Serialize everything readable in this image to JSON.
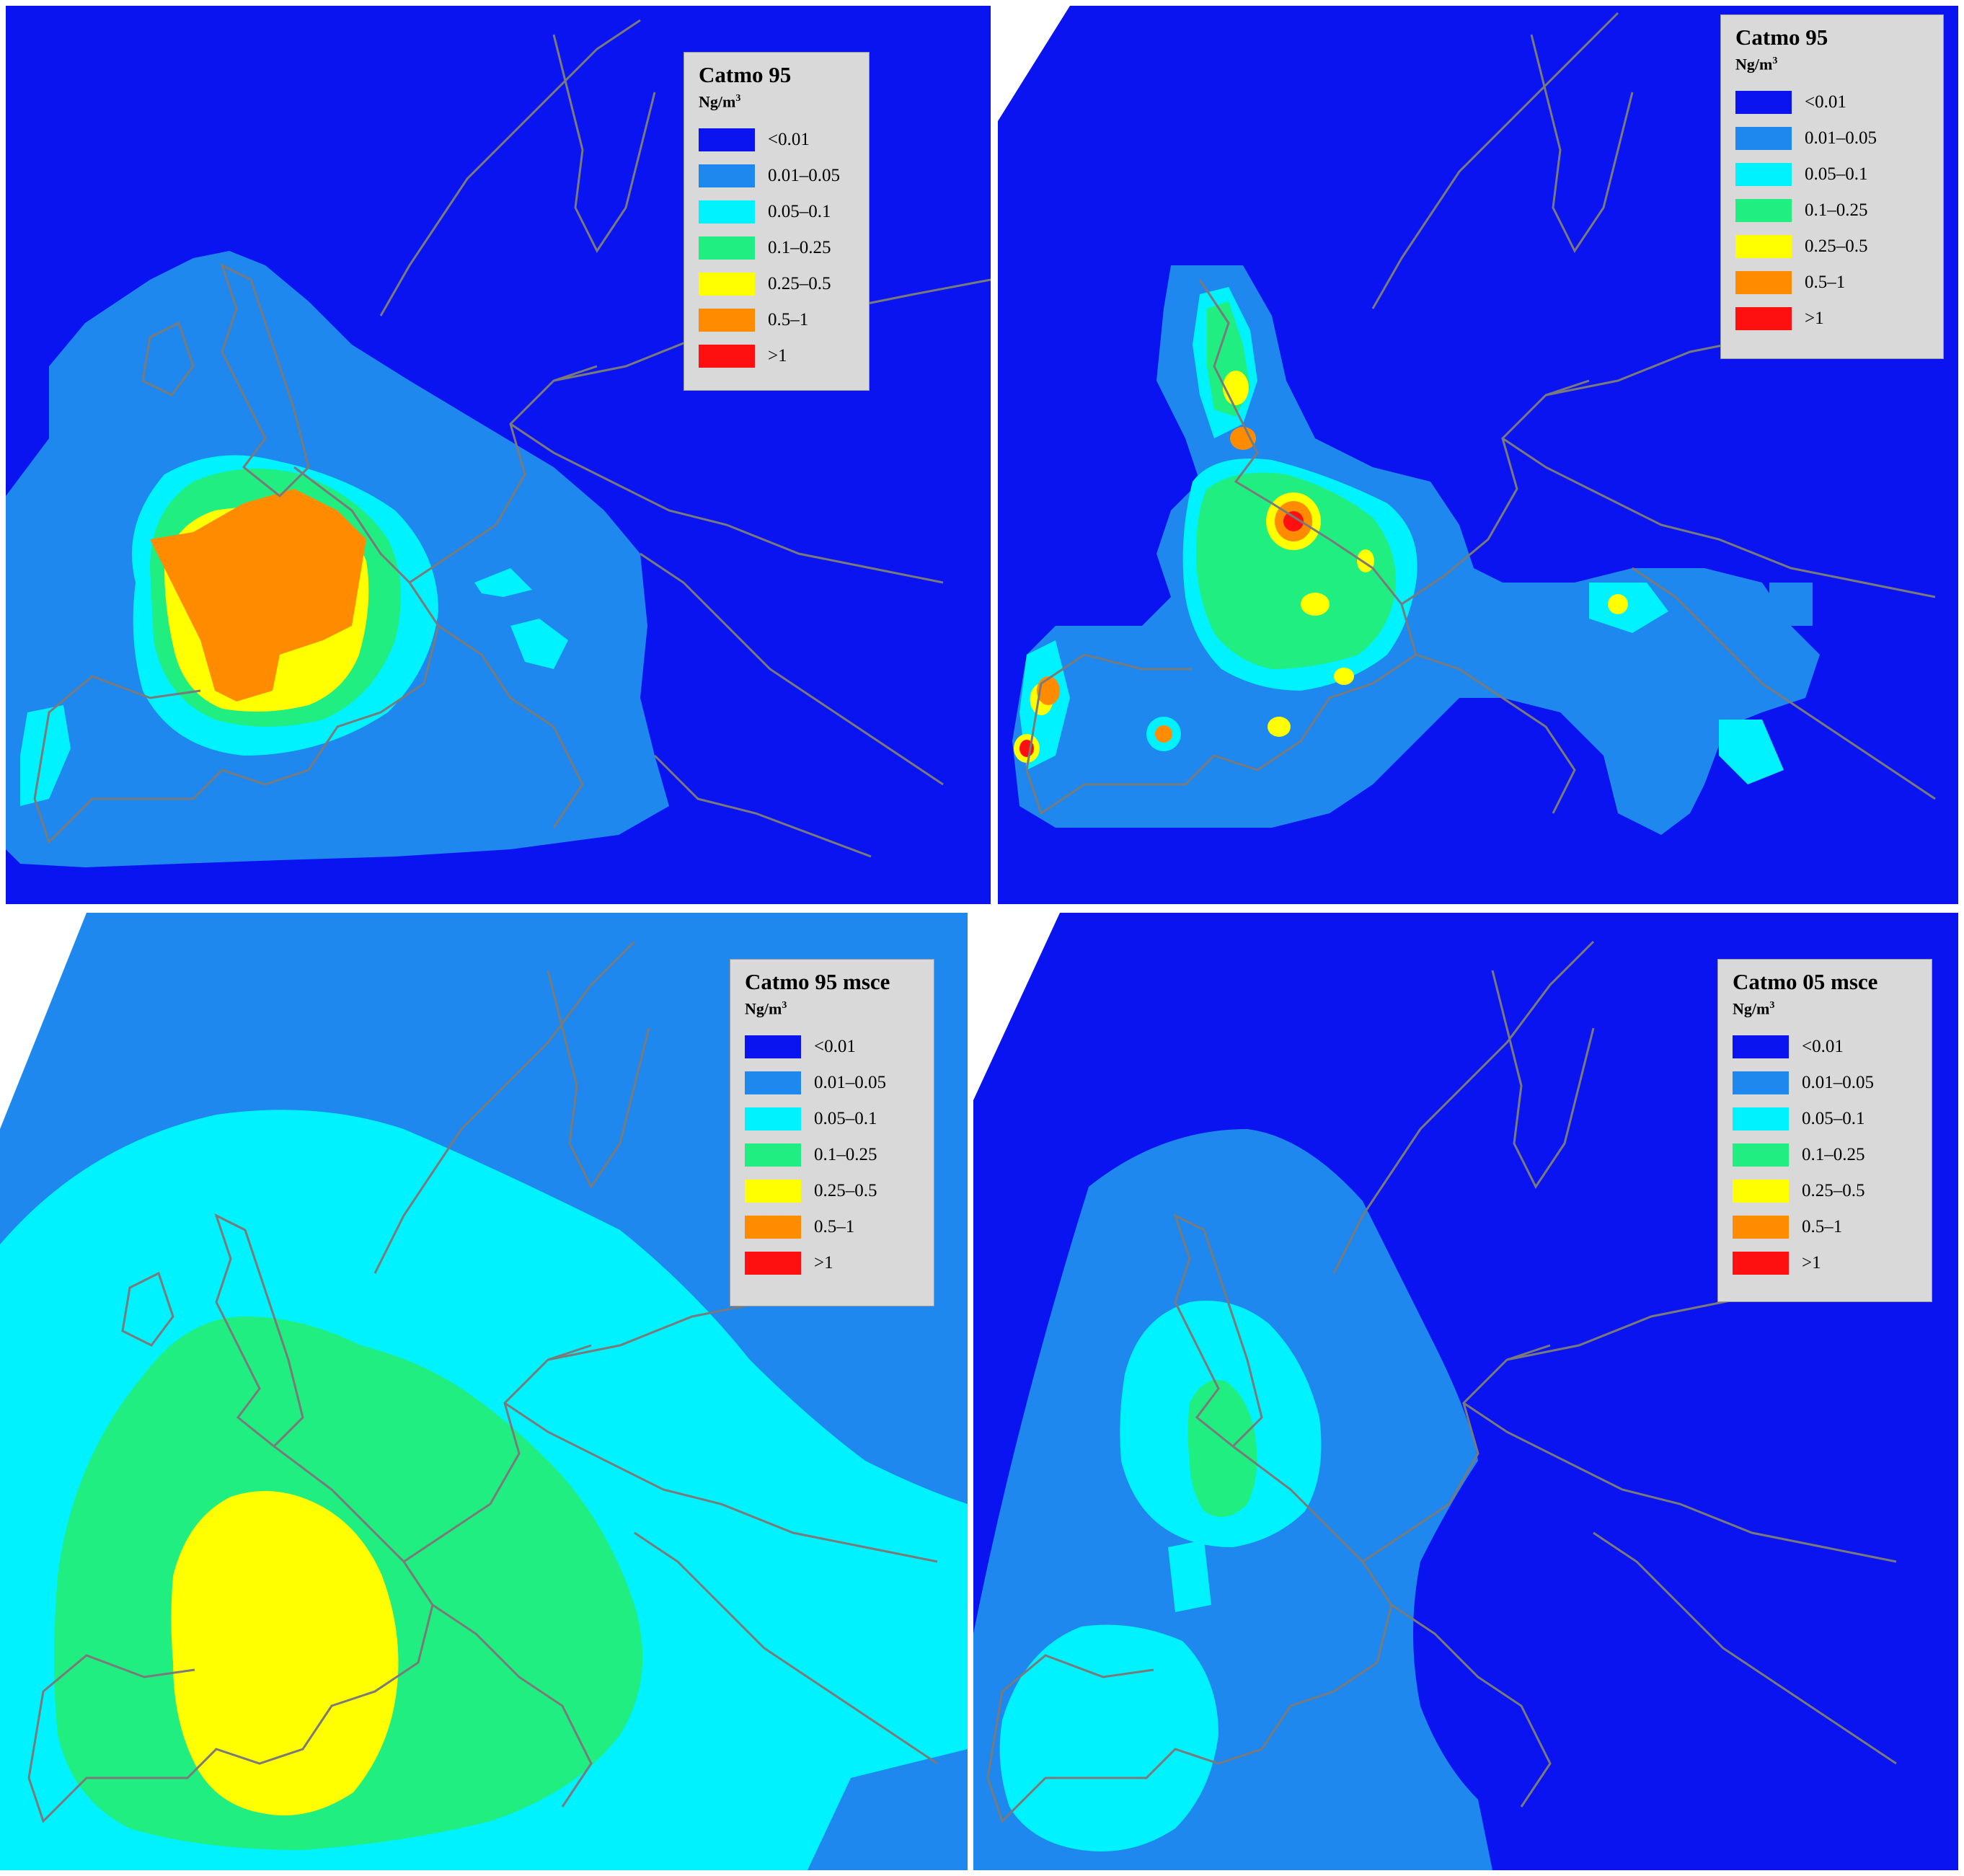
{
  "scale": {
    "unit": "Ng/m",
    "unit_superscript": "3",
    "classes": [
      {
        "label": "<0.01",
        "color": "#0a14f0"
      },
      {
        "label": "0.01–0.05",
        "color": "#1e88ee"
      },
      {
        "label": "0.05–0.1",
        "color": "#00f2ff"
      },
      {
        "label": "0.1–0.25",
        "color": "#20ee80"
      },
      {
        "label": "0.25–0.5",
        "color": "#ffff00"
      },
      {
        "label": "0.5–1",
        "color": "#ff8c00"
      },
      {
        "label": ">1",
        "color": "#ff1010"
      }
    ]
  },
  "panels": [
    {
      "title": "Catmo 95"
    },
    {
      "title": "Catmo 95"
    },
    {
      "title": "Catmo 95 msce"
    },
    {
      "title": "Catmo 05 msce"
    }
  ],
  "colors": {
    "land_outline": "#7a7a7a",
    "ocean_background": "#0a14f0",
    "outside_domain": "#ffffff"
  }
}
